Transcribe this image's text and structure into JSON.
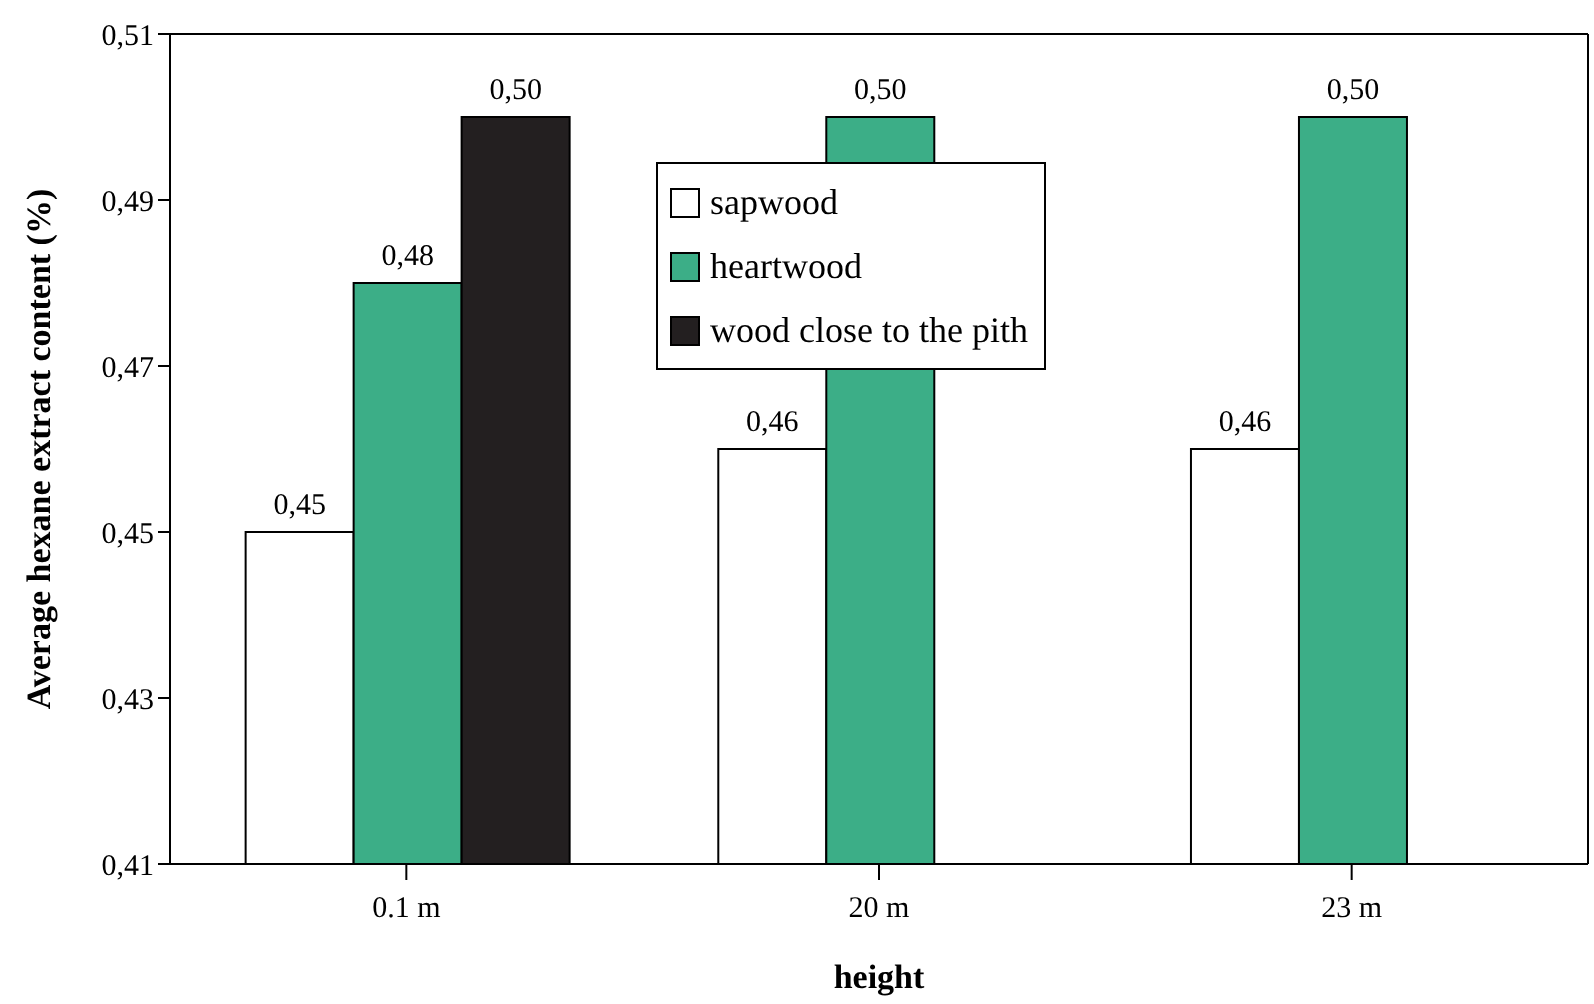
{
  "chart_data": {
    "type": "bar",
    "xlabel": "height",
    "ylabel": "Average hexane extract content (%)",
    "categories": [
      "0.1 m",
      "20 m",
      "23 m"
    ],
    "series": [
      {
        "name": "sapwood",
        "color": "#ffffff",
        "values": [
          0.45,
          0.46,
          0.46
        ],
        "value_labels": [
          "0,45",
          "0,46",
          "0,46"
        ]
      },
      {
        "name": "heartwood",
        "color": "#3cae87",
        "values": [
          0.48,
          0.5,
          0.5
        ],
        "value_labels": [
          "0,48",
          "0,50",
          "0,50"
        ]
      },
      {
        "name": "wood close to the pith",
        "color": "#231f20",
        "values": [
          0.5,
          null,
          null
        ],
        "value_labels": [
          "0,50",
          null,
          null
        ]
      }
    ],
    "ylim": [
      0.41,
      0.51
    ],
    "yticks": [
      {
        "value": 0.41,
        "label": "0,41"
      },
      {
        "value": 0.43,
        "label": "0,43"
      },
      {
        "value": 0.45,
        "label": "0,45"
      },
      {
        "value": 0.47,
        "label": "0,47"
      },
      {
        "value": 0.49,
        "label": "0,49"
      },
      {
        "value": 0.51,
        "label": "0,51"
      }
    ],
    "grid": false,
    "legend": "top"
  }
}
